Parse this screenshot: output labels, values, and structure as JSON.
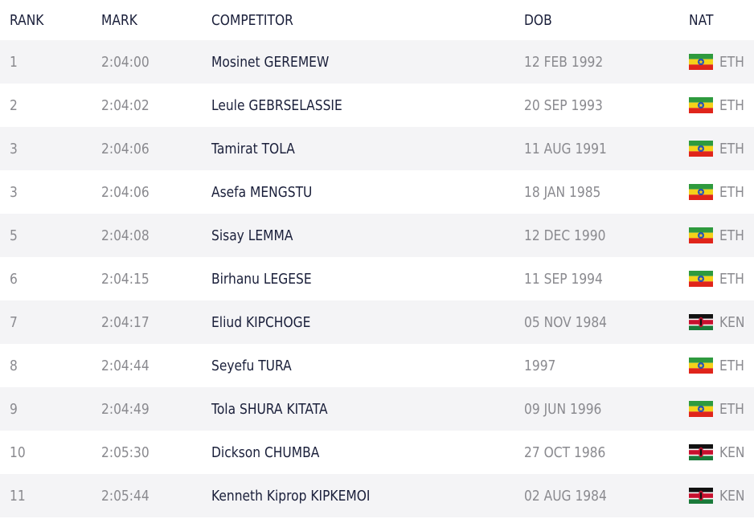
{
  "header": {
    "rank": "RANK",
    "mark": "MARK",
    "competitor": "COMPETITOR",
    "dob": "DOB",
    "nat": "NAT"
  },
  "colors": {
    "stripe": "#f4f4f6",
    "text_dark": "#1a1f3a",
    "text_muted": "#8a8a8f",
    "eth_green": "#2e9a3e",
    "eth_yellow": "#f4d21a",
    "eth_red": "#e0251b",
    "eth_emblem": "#1f4fbf",
    "ken_black": "#111111",
    "ken_red": "#c8102e",
    "ken_green": "#1a7a3a"
  },
  "rows": [
    {
      "rank": "1",
      "mark": "2:04:00",
      "competitor": "Mosinet GEREMEW",
      "dob": "12 FEB 1992",
      "nat": "ETH",
      "flag": "ethiopia-flag-icon"
    },
    {
      "rank": "2",
      "mark": "2:04:02",
      "competitor": "Leule GEBRSELASSIE",
      "dob": "20 SEP 1993",
      "nat": "ETH",
      "flag": "ethiopia-flag-icon"
    },
    {
      "rank": "3",
      "mark": "2:04:06",
      "competitor": "Tamirat TOLA",
      "dob": "11 AUG 1991",
      "nat": "ETH",
      "flag": "ethiopia-flag-icon"
    },
    {
      "rank": "3",
      "mark": "2:04:06",
      "competitor": "Asefa MENGSTU",
      "dob": "18 JAN 1985",
      "nat": "ETH",
      "flag": "ethiopia-flag-icon"
    },
    {
      "rank": "5",
      "mark": "2:04:08",
      "competitor": "Sisay LEMMA",
      "dob": "12 DEC 1990",
      "nat": "ETH",
      "flag": "ethiopia-flag-icon"
    },
    {
      "rank": "6",
      "mark": "2:04:15",
      "competitor": "Birhanu LEGESE",
      "dob": "11 SEP 1994",
      "nat": "ETH",
      "flag": "ethiopia-flag-icon"
    },
    {
      "rank": "7",
      "mark": "2:04:17",
      "competitor": "Eliud KIPCHOGE",
      "dob": "05 NOV 1984",
      "nat": "KEN",
      "flag": "kenya-flag-icon"
    },
    {
      "rank": "8",
      "mark": "2:04:44",
      "competitor": "Seyefu TURA",
      "dob": "1997",
      "nat": "ETH",
      "flag": "ethiopia-flag-icon"
    },
    {
      "rank": "9",
      "mark": "2:04:49",
      "competitor": "Tola SHURA KITATA",
      "dob": "09 JUN 1996",
      "nat": "ETH",
      "flag": "ethiopia-flag-icon"
    },
    {
      "rank": "10",
      "mark": "2:05:30",
      "competitor": "Dickson CHUMBA",
      "dob": "27 OCT 1986",
      "nat": "KEN",
      "flag": "kenya-flag-icon"
    },
    {
      "rank": "11",
      "mark": "2:05:44",
      "competitor": "Kenneth Kiprop KIPKEMOI",
      "dob": "02 AUG 1984",
      "nat": "KEN",
      "flag": "kenya-flag-icon"
    }
  ]
}
